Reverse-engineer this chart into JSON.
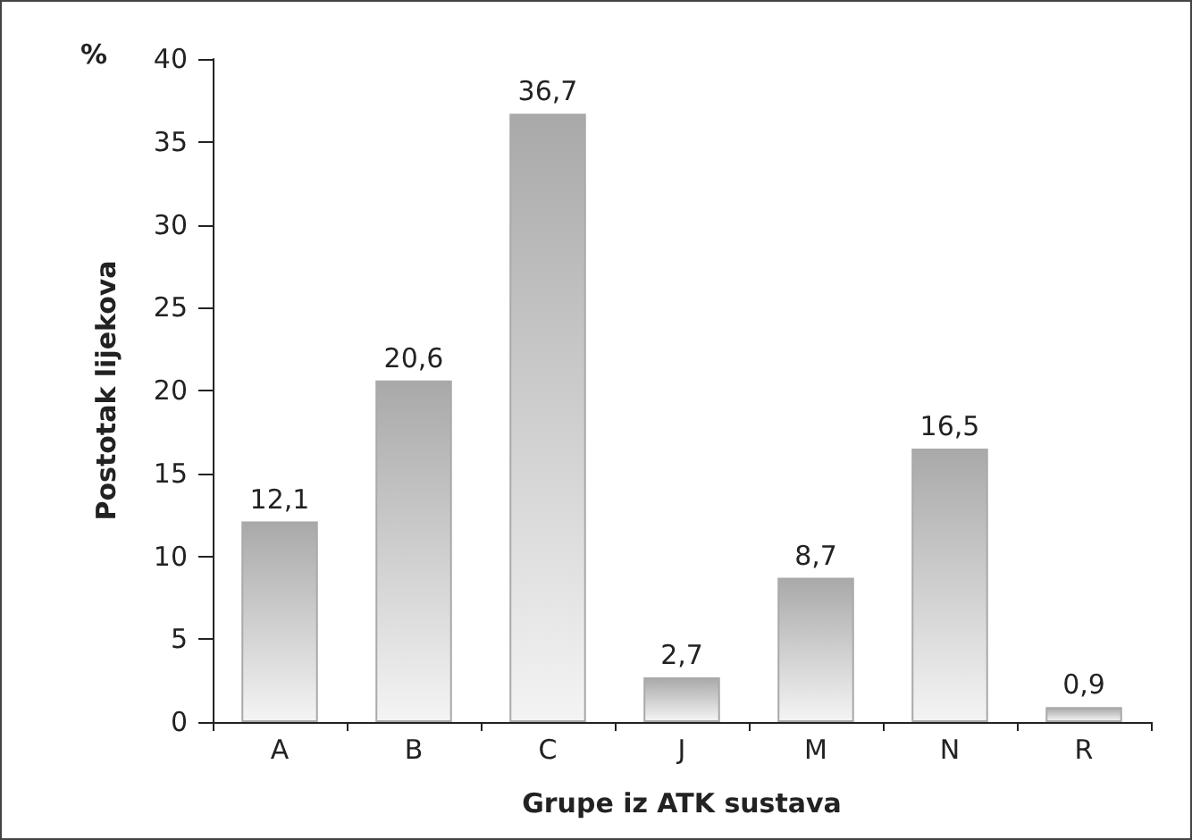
{
  "chart_data": {
    "type": "bar",
    "categories": [
      "A",
      "B",
      "C",
      "J",
      "M",
      "N",
      "R"
    ],
    "values": [
      12.1,
      20.6,
      36.7,
      2.7,
      8.7,
      16.5,
      0.9
    ],
    "value_labels": [
      "12,1",
      "20,6",
      "36,7",
      "2,7",
      "8,7",
      "16,5",
      "0,9"
    ],
    "color": "#a9a9a9",
    "xlabel": "Grupe iz ATK sustava",
    "ylabel": "Postotak lijekova",
    "annotations": [
      "%"
    ],
    "ylim": [
      0,
      40
    ],
    "yticks": [
      0,
      5,
      10,
      15,
      20,
      25,
      30,
      35,
      40
    ],
    "grid": false
  }
}
